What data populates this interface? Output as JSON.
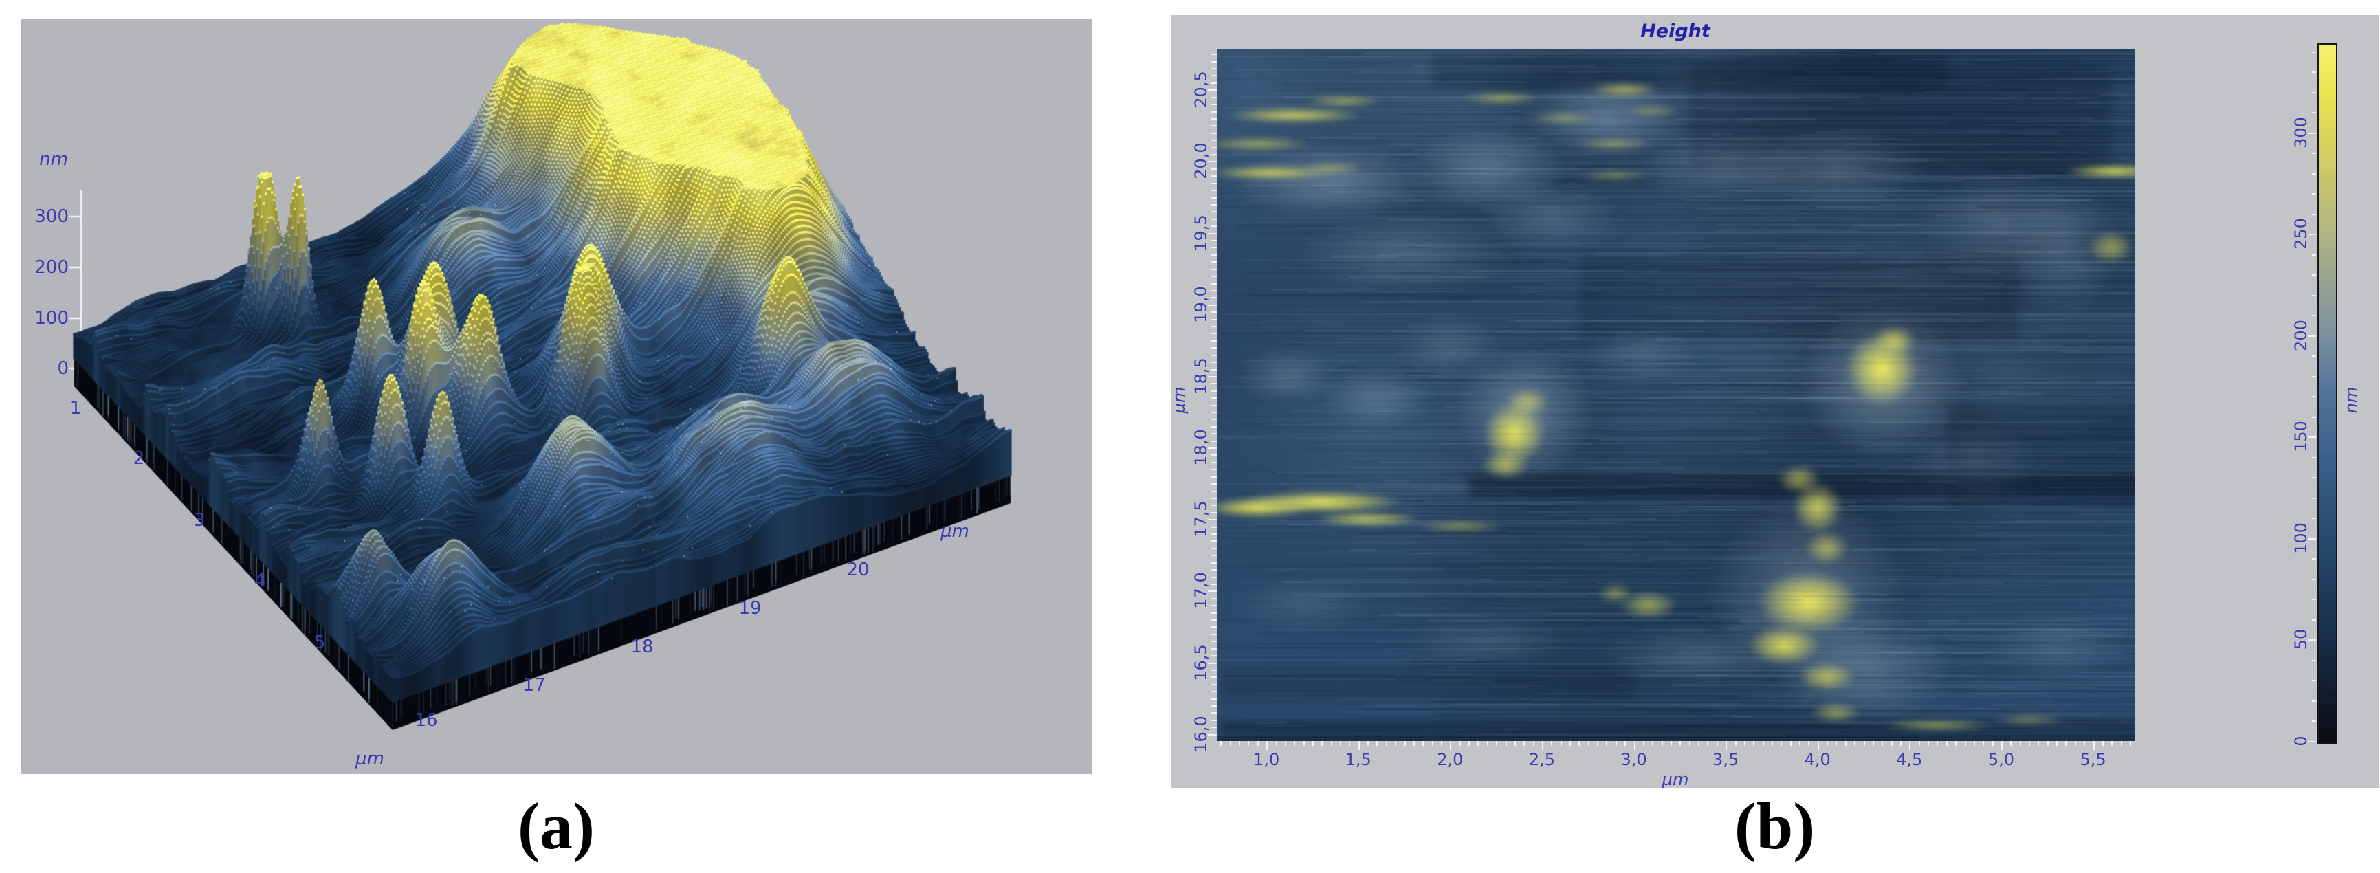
{
  "captions": {
    "a": "(a)",
    "b": "(b)"
  },
  "panel_a": {
    "z_axis": {
      "title": "nm",
      "ticks": [
        "300",
        "200",
        "100",
        "0"
      ]
    },
    "x_axis": {
      "title": "µm",
      "ticks": [
        "1",
        "2",
        "3",
        "4",
        "5"
      ]
    },
    "y_axis": {
      "title": "µm",
      "ticks": [
        "16",
        "17",
        "18",
        "19",
        "20"
      ]
    }
  },
  "panel_b": {
    "title": "Height",
    "x_axis": {
      "title": "µm",
      "ticks": [
        "1,0",
        "1,5",
        "2,0",
        "2,5",
        "3,0",
        "3,5",
        "4,0",
        "4,5",
        "5,0",
        "5,5"
      ]
    },
    "y_axis": {
      "title": "µm",
      "ticks": [
        "20,5",
        "20,0",
        "19,5",
        "19,0",
        "18,5",
        "18,0",
        "17,5",
        "17,0",
        "16,5",
        "16,0"
      ]
    },
    "colorbar": {
      "title": "nm",
      "ticks": [
        "300",
        "250",
        "200",
        "150",
        "100",
        "50",
        "0"
      ]
    }
  },
  "colors": {
    "panel_a_bg": "#b5b6bc",
    "panel_b_bg": "#c3c4c8",
    "axis_text": "#3a3ab2",
    "title_text": "#2222aa",
    "tick_mark": "#f2f3f6",
    "caption_text": "#000000",
    "palette": [
      [
        0,
        "#0a0c14"
      ],
      [
        40,
        "#15273f"
      ],
      [
        90,
        "#234467"
      ],
      [
        140,
        "#3a608a"
      ],
      [
        175,
        "#54749b"
      ],
      [
        200,
        "#7b919f"
      ],
      [
        240,
        "#a4ad8a"
      ],
      [
        280,
        "#cdc76a"
      ],
      [
        320,
        "#ece451"
      ],
      [
        344,
        "#f4f06d"
      ]
    ]
  },
  "chart_data": [
    {
      "type": "surface",
      "title": "",
      "description": "3D AFM topography: spiky steel-blue surface with yellow peaks over a dark platform",
      "units": {
        "x": "µm",
        "y": "µm",
        "z": "nm"
      },
      "x_range_um": [
        1,
        5
      ],
      "y_range_um": [
        16,
        20
      ],
      "z_range_nm": [
        0,
        350
      ],
      "x_ticks": [
        1,
        2,
        3,
        4,
        5
      ],
      "y_ticks": [
        16,
        17,
        18,
        19,
        20
      ],
      "z_ticks": [
        0,
        100,
        200,
        300
      ],
      "peaks_x_y_h_sigma": [
        [
          1.55,
          16.95,
          345,
          0.07
        ],
        [
          1.68,
          17.1,
          300,
          0.055
        ],
        [
          2.8,
          17.4,
          285,
          0.12
        ],
        [
          3.0,
          17.22,
          255,
          0.09
        ],
        [
          3.2,
          17.5,
          265,
          0.11
        ],
        [
          2.62,
          17.1,
          235,
          0.08
        ],
        [
          3.42,
          16.8,
          250,
          0.09
        ],
        [
          3.68,
          17.0,
          225,
          0.08
        ],
        [
          3.15,
          16.48,
          205,
          0.07
        ],
        [
          3.2,
          18.2,
          265,
          0.15
        ],
        [
          3.45,
          18.05,
          235,
          0.11
        ],
        [
          3.88,
          19.1,
          205,
          0.12
        ],
        [
          1.7,
          19.2,
          285,
          0.5
        ],
        [
          2.25,
          19.45,
          330,
          0.32
        ],
        [
          2.9,
          19.55,
          255,
          0.3
        ],
        [
          1.35,
          18.85,
          210,
          0.28
        ],
        [
          2.6,
          19.0,
          225,
          0.35
        ],
        [
          3.4,
          19.4,
          200,
          0.3
        ],
        [
          4.5,
          18.5,
          150,
          0.3
        ],
        [
          4.15,
          17.6,
          160,
          0.2
        ],
        [
          2.0,
          18.0,
          140,
          0.25
        ],
        [
          4.3,
          19.3,
          170,
          0.25
        ],
        [
          4.7,
          16.5,
          130,
          0.15
        ],
        [
          4.4,
          16.2,
          150,
          0.1
        ]
      ]
    },
    {
      "type": "heatmap",
      "title": "Height",
      "description": "2D AFM height map, streaky steel-blue background with bright yellow high regions",
      "units": {
        "x": "µm",
        "y": "µm",
        "value": "nm"
      },
      "x_range_um": [
        0.73,
        5.73
      ],
      "y_range_um": [
        15.95,
        20.78
      ],
      "x_ticks": [
        1.0,
        1.5,
        2.0,
        2.5,
        3.0,
        3.5,
        4.0,
        4.5,
        5.0,
        5.5
      ],
      "y_ticks": [
        20.5,
        20.0,
        19.5,
        19.0,
        18.5,
        18.0,
        17.5,
        17.0,
        16.5,
        16.0
      ],
      "colorbar": {
        "unit": "nm",
        "min": 0,
        "max": 344,
        "ticks": [
          0,
          50,
          100,
          150,
          200,
          250,
          300
        ]
      },
      "yellow_blobs_x_y_rx_ry_i": [
        [
          1.15,
          20.32,
          0.38,
          0.055,
          0.85
        ],
        [
          1.42,
          20.42,
          0.22,
          0.04,
          0.6
        ],
        [
          0.95,
          20.12,
          0.3,
          0.05,
          0.6
        ],
        [
          1.02,
          19.92,
          0.35,
          0.05,
          0.85
        ],
        [
          1.35,
          19.95,
          0.18,
          0.04,
          0.5
        ],
        [
          2.28,
          20.44,
          0.22,
          0.045,
          0.55
        ],
        [
          2.62,
          20.3,
          0.18,
          0.04,
          0.45
        ],
        [
          2.95,
          20.5,
          0.2,
          0.05,
          0.65
        ],
        [
          2.9,
          20.12,
          0.22,
          0.04,
          0.5
        ],
        [
          3.1,
          20.35,
          0.15,
          0.04,
          0.4
        ],
        [
          2.9,
          19.9,
          0.2,
          0.04,
          0.4
        ],
        [
          5.62,
          19.93,
          0.28,
          0.05,
          0.95
        ],
        [
          5.6,
          19.4,
          0.13,
          0.12,
          0.55
        ],
        [
          0.95,
          17.58,
          0.3,
          0.07,
          1.0
        ],
        [
          1.3,
          17.62,
          0.45,
          0.08,
          1.0
        ],
        [
          1.55,
          17.5,
          0.3,
          0.05,
          0.85
        ],
        [
          2.05,
          17.45,
          0.25,
          0.04,
          0.5
        ],
        [
          2.35,
          18.1,
          0.17,
          0.22,
          0.95
        ],
        [
          2.42,
          18.32,
          0.12,
          0.1,
          0.6
        ],
        [
          2.3,
          17.88,
          0.13,
          0.1,
          0.7
        ],
        [
          4.35,
          18.55,
          0.2,
          0.26,
          1.0
        ],
        [
          4.42,
          18.75,
          0.12,
          0.1,
          0.7
        ],
        [
          4.0,
          17.58,
          0.14,
          0.18,
          0.8
        ],
        [
          4.05,
          17.3,
          0.12,
          0.12,
          0.6
        ],
        [
          3.9,
          17.78,
          0.12,
          0.1,
          0.6
        ],
        [
          3.95,
          16.92,
          0.28,
          0.22,
          1.0
        ],
        [
          3.82,
          16.62,
          0.2,
          0.14,
          0.9
        ],
        [
          4.05,
          16.4,
          0.16,
          0.1,
          0.7
        ],
        [
          4.1,
          16.15,
          0.14,
          0.07,
          0.55
        ],
        [
          3.08,
          16.9,
          0.16,
          0.1,
          0.6
        ],
        [
          2.9,
          16.98,
          0.1,
          0.07,
          0.45
        ],
        [
          4.65,
          16.06,
          0.3,
          0.04,
          0.6
        ],
        [
          5.15,
          16.1,
          0.2,
          0.035,
          0.45
        ]
      ],
      "light_clouds_x_y_rx_ry_a": [
        [
          1.35,
          19.85,
          0.55,
          0.28,
          0.45
        ],
        [
          2.2,
          19.95,
          0.45,
          0.3,
          0.4
        ],
        [
          1.75,
          19.35,
          0.6,
          0.3,
          0.3
        ],
        [
          2.85,
          20.3,
          0.45,
          0.28,
          0.45
        ],
        [
          2.55,
          19.6,
          0.4,
          0.25,
          0.28
        ],
        [
          4.1,
          19.95,
          0.5,
          0.3,
          0.3
        ],
        [
          5.0,
          19.55,
          0.45,
          0.4,
          0.28
        ],
        [
          2.4,
          18.25,
          0.38,
          0.5,
          0.5
        ],
        [
          2.0,
          18.7,
          0.3,
          0.25,
          0.25
        ],
        [
          4.35,
          18.45,
          0.45,
          0.55,
          0.5
        ],
        [
          3.95,
          17.0,
          0.55,
          0.65,
          0.42
        ],
        [
          4.25,
          16.45,
          0.5,
          0.4,
          0.4
        ],
        [
          1.6,
          18.35,
          0.32,
          0.22,
          0.3
        ],
        [
          1.12,
          18.5,
          0.28,
          0.2,
          0.32
        ],
        [
          3.35,
          16.55,
          0.55,
          0.22,
          0.28
        ],
        [
          2.2,
          16.65,
          0.45,
          0.18,
          0.22
        ],
        [
          5.35,
          19.4,
          0.3,
          0.5,
          0.28
        ],
        [
          3.05,
          18.65,
          0.32,
          0.22,
          0.22
        ],
        [
          1.2,
          16.9,
          0.4,
          0.2,
          0.2
        ],
        [
          4.85,
          17.9,
          0.35,
          0.3,
          0.18
        ],
        [
          3.5,
          19.95,
          0.5,
          0.25,
          0.3
        ],
        [
          5.3,
          16.6,
          0.4,
          0.25,
          0.2
        ]
      ],
      "dark_bands_y_hh_x0_x1_a": [
        [
          17.73,
          0.07,
          2.1,
          5.75,
          0.5
        ],
        [
          16.04,
          0.05,
          0.75,
          5.75,
          0.45
        ],
        [
          19.05,
          0.3,
          2.7,
          5.1,
          0.22
        ],
        [
          20.62,
          0.12,
          1.9,
          4.7,
          0.28
        ],
        [
          17.95,
          0.35,
          4.7,
          5.75,
          0.28
        ],
        [
          16.35,
          0.12,
          0.75,
          3.0,
          0.2
        ],
        [
          20.3,
          0.4,
          3.3,
          5.6,
          0.22
        ]
      ]
    }
  ]
}
